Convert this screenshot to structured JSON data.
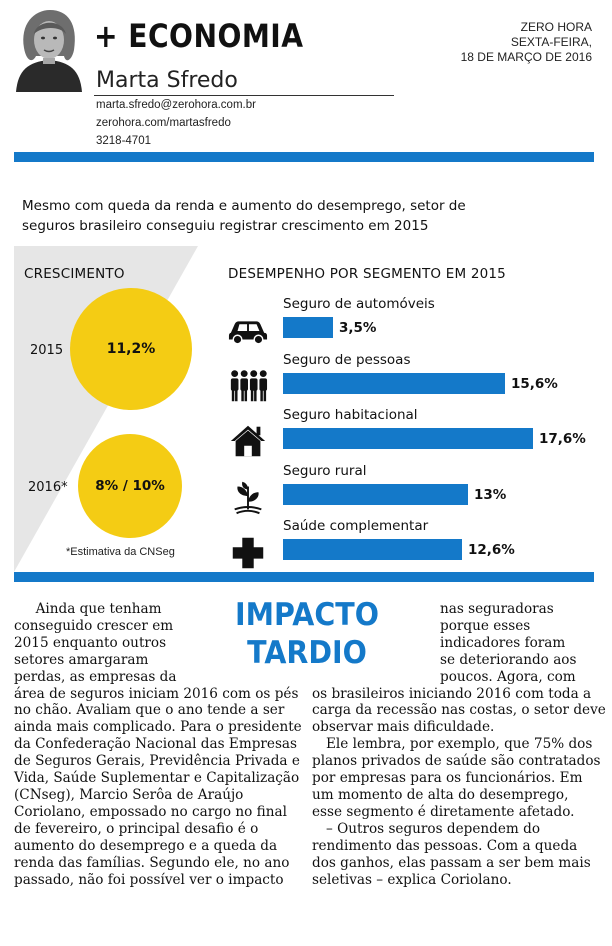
{
  "header": {
    "section_title": "+ ECONOMIA",
    "author_name": "Marta Sfredo",
    "email": "marta.sfredo@zerohora.com.br",
    "site": "zerohora.com/martasfredo",
    "phone": "3218-4701",
    "newspaper": "ZERO HORA",
    "weekday": "SEXTA-FEIRA,",
    "date": "18 DE MARÇO DE 2016"
  },
  "infographic": {
    "intro_line1": "Mesmo com queda da renda e aumento do desemprego, setor de",
    "intro_line2": "seguros brasileiro conseguiu registrar crescimento em 2015",
    "growth": {
      "title": "CRESCIMENTO",
      "year_2015": "2015",
      "value_2015": "11,2%",
      "year_2016": "2016*",
      "value_2016": "8% / 10%",
      "footnote": "*Estimativa da CNSeg"
    },
    "colors": {
      "bar": "#1479c9",
      "circle": "#f4cc14",
      "panel": "#e6e6e6"
    }
  },
  "chart_data": {
    "type": "bar",
    "title": "DESEMPENHO POR SEGMENTO EM 2015",
    "orientation": "horizontal",
    "categories": [
      "Seguro de automóveis",
      "Seguro de pessoas",
      "Seguro habitacional",
      "Seguro rural",
      "Saúde complementar"
    ],
    "values": [
      3.5,
      15.6,
      17.6,
      13,
      12.6
    ],
    "value_labels": [
      "3,5%",
      "15,6%",
      "17,6%",
      "13%",
      "12,6%"
    ],
    "icons": [
      "car-icon",
      "people-icon",
      "house-icon",
      "plant-icon",
      "health-cross-icon"
    ],
    "xlim": [
      0,
      17.6
    ],
    "grid": false
  },
  "article": {
    "headline_line1": "IMPACTO",
    "headline_line2": "TARDIO",
    "col1_lines": [
      "     Ainda que tenham",
      "conseguido crescer em",
      "2015 enquanto outros",
      "setores amargaram",
      "perdas, as empresas da",
      "área de seguros iniciam 2016 com os pés",
      "no chão. Avaliam que o ano tende a ser",
      "ainda mais complicado. Para o presidente",
      "da Confederação Nacional das Empresas",
      "de Seguros Gerais, Previdência Privada e",
      "Vida, Saúde Suplementar e Capitalização",
      "(CNseg), Marcio Serôa de Araújo",
      "Coriolano, empossado no cargo no final",
      "de fevereiro, o principal desafio é o",
      "aumento do desemprego e a queda da",
      "renda das famílias. Segundo ele, no ano",
      "passado, não foi possível ver o impacto"
    ],
    "col2_lines": [
      "nas seguradoras",
      "porque esses",
      "indicadores foram",
      "se deteriorando aos",
      "poucos. Agora, com",
      "os brasileiros iniciando 2016 com toda a",
      "carga da recessão nas costas, o setor deve",
      "observar mais dificuldade.",
      "Ele lembra, por exemplo, que 75% dos",
      "planos privados de saúde são contratados",
      "por empresas para os funcionários. Em",
      "um momento de alta do desemprego,",
      "esse segmento é diretamente afetado.",
      "– Outros seguros dependem do",
      "rendimento das pessoas. Com a queda",
      "dos ganhos, elas passam a ser bem mais",
      "seletivas – explica Coriolano."
    ]
  }
}
